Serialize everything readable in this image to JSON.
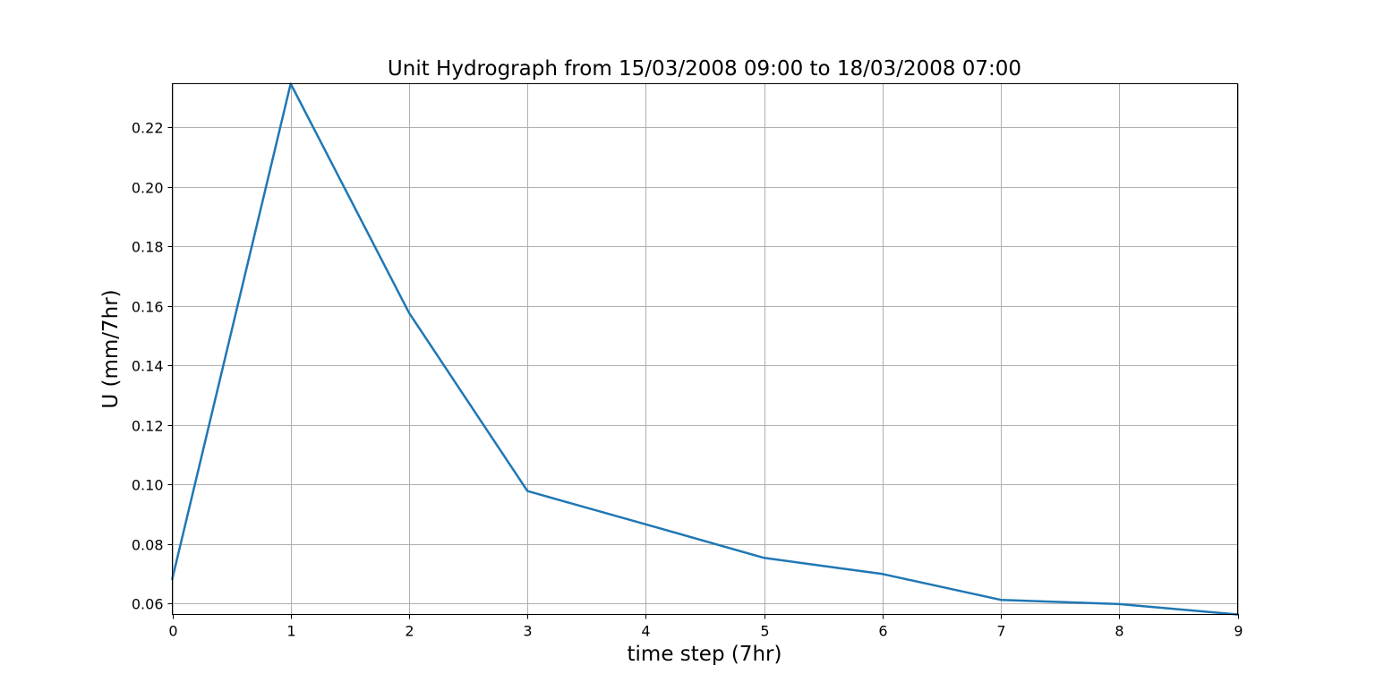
{
  "chart_data": {
    "type": "line",
    "title": "Unit Hydrograph from 15/03/2008 09:00 to 18/03/2008 07:00",
    "xlabel": "time step (7hr)",
    "ylabel": "U (mm/7hr)",
    "xlim": [
      0,
      9
    ],
    "ylim": [
      0.0563,
      0.2347
    ],
    "xticks": [
      0,
      1,
      2,
      3,
      4,
      5,
      6,
      7,
      8,
      9
    ],
    "yticks": [
      0.06,
      0.08,
      0.1,
      0.12,
      0.14,
      0.16,
      0.18,
      0.2,
      0.22
    ],
    "ytick_labels": [
      "0.06",
      "0.08",
      "0.10",
      "0.12",
      "0.14",
      "0.16",
      "0.18",
      "0.20",
      "0.22"
    ],
    "grid": true,
    "series": [
      {
        "color": "#1f77b4",
        "x": [
          0,
          1,
          2,
          3,
          4,
          5,
          6,
          7,
          8,
          9
        ],
        "y": [
          0.0683,
          0.2347,
          0.1577,
          0.0978,
          0.0866,
          0.0753,
          0.0699,
          0.0612,
          0.0598,
          0.0563
        ]
      }
    ]
  }
}
